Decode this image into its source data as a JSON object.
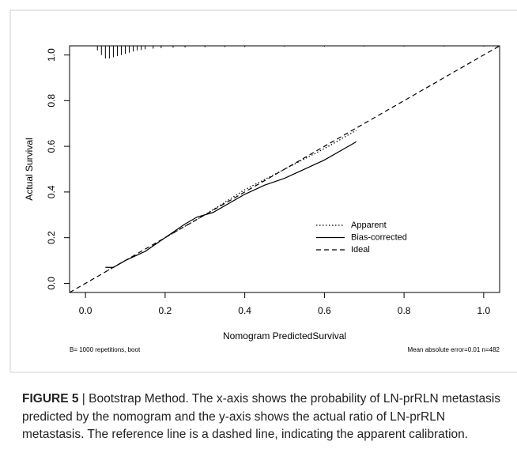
{
  "chart_data": {
    "type": "line",
    "x_label": "Nomogram PredictedSurvival",
    "y_label": "Actual Survival",
    "note_left": "B= 1000 repetitions, boot",
    "note_right": "Mean absolute error=0.01 n=482",
    "xlim": [
      -0.04,
      1.04
    ],
    "ylim": [
      -0.04,
      1.04
    ],
    "xticks": [
      {
        "value": 0,
        "label": "0.0"
      },
      0.2,
      0.4,
      0.6,
      0.8,
      {
        "value": 1,
        "label": "1.0"
      }
    ],
    "yticks": [
      {
        "value": 0,
        "label": "0.0"
      },
      0.2,
      0.4,
      0.6,
      0.8,
      {
        "value": 1,
        "label": "1.0"
      }
    ],
    "series": [
      {
        "name": "Apparent",
        "color": "#000000",
        "dash": "dotted",
        "x": [
          0.05,
          0.1,
          0.15,
          0.2,
          0.3,
          0.4,
          0.5,
          0.6,
          0.68
        ],
        "values": [
          0.05,
          0.1,
          0.14,
          0.2,
          0.3,
          0.41,
          0.5,
          0.59,
          0.67
        ]
      },
      {
        "name": "Bias-corrected",
        "color": "#000000",
        "dash": "solid",
        "x": [
          0.05,
          0.07,
          0.1,
          0.15,
          0.2,
          0.25,
          0.28,
          0.32,
          0.4,
          0.45,
          0.5,
          0.6,
          0.68
        ],
        "values": [
          0.07,
          0.07,
          0.1,
          0.14,
          0.2,
          0.26,
          0.29,
          0.31,
          0.39,
          0.43,
          0.46,
          0.54,
          0.62
        ]
      },
      {
        "name": "Ideal",
        "color": "#000000",
        "dash": "dashed",
        "x": [
          -0.04,
          1.04
        ],
        "values": [
          -0.04,
          1.04
        ]
      }
    ],
    "rug": {
      "x": [
        0.03,
        0.04,
        0.05,
        0.06,
        0.07,
        0.08,
        0.09,
        0.1,
        0.11,
        0.12,
        0.13,
        0.14,
        0.15,
        0.17,
        0.19,
        0.22,
        0.25,
        0.3,
        0.35,
        0.4,
        0.5,
        0.6,
        0.7,
        0.8,
        0.9,
        1.0
      ],
      "heights": [
        0.02,
        0.04,
        0.055,
        0.055,
        0.05,
        0.045,
        0.04,
        0.035,
        0.03,
        0.025,
        0.02,
        0.018,
        0.015,
        0.012,
        0.01,
        0.008,
        0.007,
        0.006,
        0.005,
        0.005,
        0.004,
        0.004,
        0.003,
        0.003,
        0.003,
        0.003
      ]
    }
  },
  "caption": {
    "label": "FIGURE 5",
    "text": " | Bootstrap Method. The x-axis shows the probability of LN-prRLN metastasis predicted by the nomogram and the y-axis shows the actual ratio of LN-prRLN metastasis. The reference line is a dashed line, indicating the apparent calibration."
  }
}
